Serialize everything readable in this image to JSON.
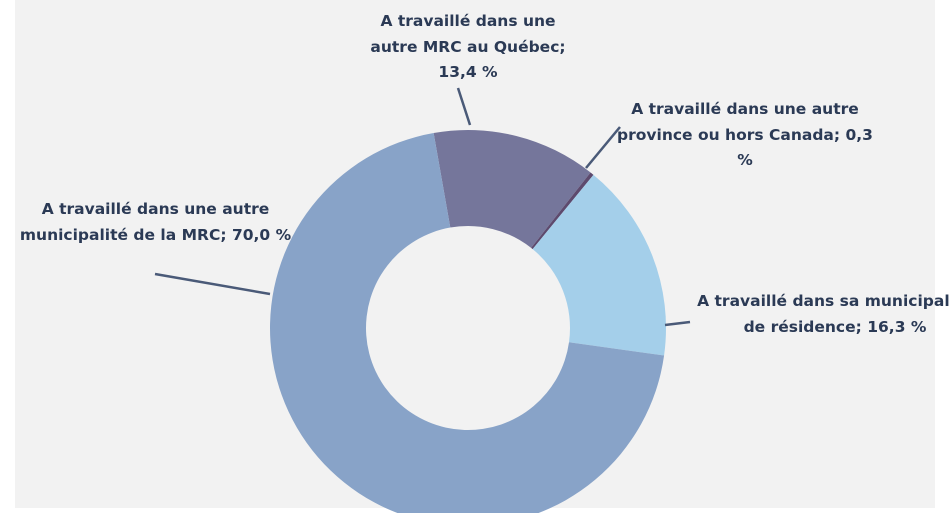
{
  "chart_data": {
    "type": "donut",
    "categories": [
      "A travaillé dans une autre MRC au Québec;",
      "A travaillé dans une autre province ou hors Canada;",
      "A travaillé dans sa municipalité de résidence;",
      "A travaillé dans une autre municipalité de la MRC;"
    ],
    "values": [
      13.4,
      0.3,
      16.3,
      70.0
    ],
    "value_labels": [
      "13,4 %",
      "0,3 %",
      "16,3 %",
      "70,0 %"
    ],
    "colors": [
      "#75769b",
      "#5d4a6e",
      "#a4cfea",
      "#88a3c8"
    ]
  }
}
